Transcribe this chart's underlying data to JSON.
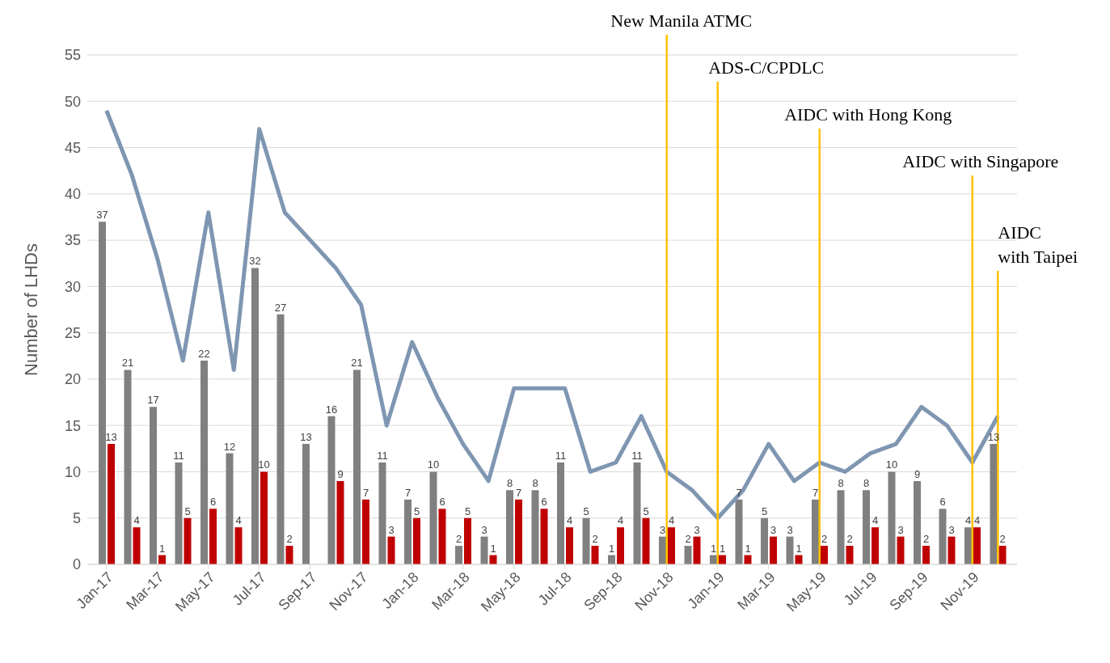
{
  "chart_data": {
    "type": "bar",
    "ylabel": "Number of LHDs",
    "x": [
      "2017-01",
      "2017-02",
      "2017-03",
      "2017-04",
      "2017-05",
      "2017-06",
      "2017-07",
      "2017-08",
      "2017-09",
      "2017-10",
      "2017-11",
      "2017-12",
      "2018-01",
      "2018-02",
      "2018-03",
      "2018-04",
      "2018-05",
      "2018-06",
      "2018-07",
      "2018-08",
      "2018-09",
      "2018-10",
      "2018-11",
      "2018-12",
      "2019-01",
      "2019-02",
      "2019-03",
      "2019-04",
      "2019-05",
      "2019-06",
      "2019-07",
      "2019-08",
      "2019-09",
      "2019-10",
      "2019-11",
      "2019-12"
    ],
    "xticks": [
      {
        "value": "2017-01",
        "label": "Jan-17"
      },
      {
        "value": "2017-03",
        "label": "Mar-17"
      },
      {
        "value": "2017-05",
        "label": "May-17"
      },
      {
        "value": "2017-07",
        "label": "Jul-17"
      },
      {
        "value": "2017-09",
        "label": "Sep-17"
      },
      {
        "value": "2017-11",
        "label": "Nov-17"
      },
      {
        "value": "2018-01",
        "label": "Jan-18"
      },
      {
        "value": "2018-03",
        "label": "Mar-18"
      },
      {
        "value": "2018-05",
        "label": "May-18"
      },
      {
        "value": "2018-07",
        "label": "Jul-18"
      },
      {
        "value": "2018-09",
        "label": "Sep-18"
      },
      {
        "value": "2018-11",
        "label": "Nov-18"
      },
      {
        "value": "2019-01",
        "label": "Jan-19"
      },
      {
        "value": "2019-03",
        "label": "Mar-19"
      },
      {
        "value": "2019-05",
        "label": "May-19"
      },
      {
        "value": "2019-07",
        "label": "Jul-19"
      },
      {
        "value": "2019-09",
        "label": "Sep-19"
      },
      {
        "value": "2019-11",
        "label": "Nov-19"
      }
    ],
    "xlim": [
      "2017-01",
      "2019-12"
    ],
    "ylim": [
      0,
      55
    ],
    "yticks": [
      0,
      5,
      10,
      15,
      20,
      25,
      30,
      35,
      40,
      45,
      50,
      55
    ],
    "grid": "y",
    "series": [
      {
        "color": "#808080",
        "values": [
          37,
          21,
          17,
          11,
          22,
          12,
          32,
          27,
          13,
          16,
          21,
          11,
          7,
          10,
          2,
          3,
          8,
          8,
          11,
          5,
          1,
          11,
          3,
          2,
          1,
          7,
          5,
          3,
          7,
          8,
          8,
          10,
          9,
          6,
          4,
          13
        ],
        "value_labels": [
          "37",
          "21",
          "17",
          "11",
          "22",
          "12",
          "32",
          "27",
          "13",
          "16",
          "21",
          "11",
          "7",
          "10",
          "2",
          "3",
          "8",
          "8",
          "11",
          "5",
          "1",
          "11",
          "3",
          "2",
          "1",
          "7",
          "5",
          "3",
          "7",
          "8",
          "8",
          "10",
          "9",
          "6",
          "4",
          "13"
        ]
      },
      {
        "color": "#c00000",
        "values": [
          13,
          4,
          1,
          5,
          6,
          4,
          10,
          2,
          0,
          9,
          7,
          3,
          5,
          6,
          5,
          1,
          7,
          6,
          4,
          2,
          4,
          5,
          4,
          3,
          1,
          1,
          3,
          1,
          2,
          2,
          4,
          3,
          2,
          3,
          4,
          2
        ],
        "value_labels": [
          "13",
          "4",
          "1",
          "5",
          "6",
          "4",
          "10",
          "2",
          null,
          "9",
          "7",
          "3",
          "5",
          "6",
          "5",
          "1",
          "7",
          "6",
          "4",
          "2",
          "4",
          "5",
          "4",
          "3",
          "1",
          "1",
          "3",
          "1",
          "2",
          "2",
          "4",
          "3",
          "2",
          "3",
          "4",
          "2"
        ]
      },
      {
        "type": "line",
        "color": "#7f96b2",
        "values": [
          49,
          42,
          33,
          22,
          38,
          21,
          47,
          38,
          35,
          32,
          28,
          15,
          24,
          18,
          13,
          9,
          19,
          19,
          19,
          10,
          11,
          16,
          10,
          8,
          5,
          8,
          13,
          9,
          11,
          10,
          12,
          13,
          17,
          15,
          11,
          16
        ]
      }
    ],
    "ref_lines": [
      {
        "axis": "x",
        "value": "2018-11",
        "label": "New Manila ATMC",
        "color": "#ffc000"
      },
      {
        "axis": "x",
        "value": "2019-01",
        "label": "ADS-C/CPDLC",
        "color": "#ffc000"
      },
      {
        "axis": "x",
        "value": "2019-05",
        "label": "AIDC with Hong Kong",
        "color": "#ffc000"
      },
      {
        "axis": "x",
        "value": "2019-11",
        "label": "AIDC with Singapore",
        "color": "#ffc000"
      },
      {
        "axis": "x",
        "value": "2019-12",
        "label": "AIDC with Taipei",
        "color": "#ffc000"
      }
    ]
  }
}
